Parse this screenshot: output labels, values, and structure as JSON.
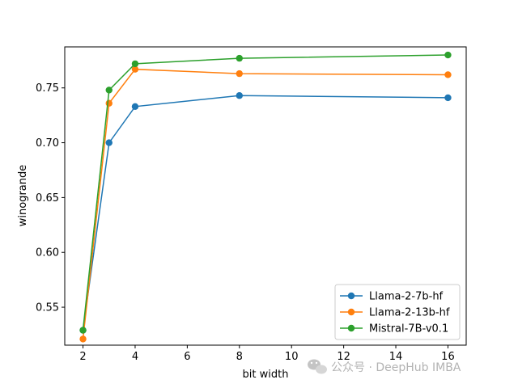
{
  "chart_data": {
    "type": "line",
    "title": "",
    "xlabel": "bit width",
    "ylabel": "winogrande",
    "xlim": [
      1.3,
      16.7
    ],
    "ylim": [
      0.5154,
      0.7874
    ],
    "xticks": [
      2,
      4,
      6,
      8,
      10,
      12,
      14,
      16
    ],
    "yticks": [
      0.55,
      0.6,
      0.65,
      0.7,
      0.75
    ],
    "ytick_labels": [
      "0.55",
      "0.60",
      "0.65",
      "0.70",
      "0.75"
    ],
    "grid": false,
    "legend_position": "lower-right",
    "x": [
      2,
      3,
      4,
      8,
      16
    ],
    "series": [
      {
        "name": "Llama-2-7b-hf",
        "color": "#1f77b4",
        "values": [
          0.529,
          0.7,
          0.733,
          0.743,
          0.741
        ]
      },
      {
        "name": "Llama-2-13b-hf",
        "color": "#ff7f0e",
        "values": [
          0.521,
          0.736,
          0.767,
          0.763,
          0.762
        ]
      },
      {
        "name": "Mistral-7B-v0.1",
        "color": "#2ca02c",
        "values": [
          0.529,
          0.748,
          0.772,
          0.777,
          0.78
        ]
      }
    ]
  },
  "watermark": {
    "text": "公众号 · DeepHub IMBA",
    "icon": "wechat-icon"
  }
}
